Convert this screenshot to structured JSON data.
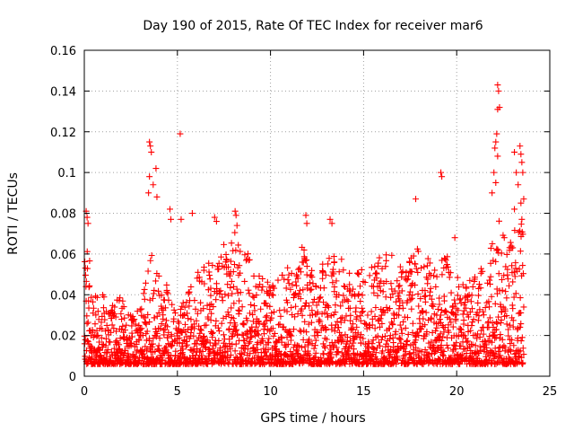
{
  "chart_data": {
    "type": "scatter",
    "title": "Day 190 of 2015, Rate Of TEC Index for receiver mar6",
    "xlabel": "GPS time / hours",
    "ylabel": "ROTI / TECUs",
    "xlim": [
      0,
      25
    ],
    "ylim": [
      0,
      0.16
    ],
    "x_ticks": [
      "0",
      "5",
      "10",
      "15",
      "20",
      "25"
    ],
    "y_ticks": [
      "0",
      "0.02",
      "0.04",
      "0.06",
      "0.08",
      "0.1",
      "0.12",
      "0.14",
      "0.16"
    ],
    "grid": true,
    "legend": "none",
    "marker": "plus",
    "color": "#ff0000",
    "envelope": {
      "x": [
        0,
        0.1,
        0.2,
        0.3,
        0.5,
        1,
        1.5,
        2,
        2.5,
        3,
        3.5,
        3.6,
        4,
        4.5,
        5,
        5.5,
        6,
        6.5,
        7,
        7.5,
        8,
        8.2,
        9,
        9.5,
        10,
        10.5,
        11,
        11.5,
        11.8,
        12,
        12.5,
        13,
        13.3,
        14,
        14.5,
        15,
        15.5,
        16,
        16.5,
        17,
        17.5,
        18,
        18.5,
        19,
        19.5,
        20,
        20.5,
        21,
        21.5,
        22,
        22.3,
        22.5,
        23,
        23.3,
        23.6
      ],
      "y": [
        0.05,
        0.08,
        0.07,
        0.055,
        0.045,
        0.04,
        0.035,
        0.04,
        0.03,
        0.035,
        0.055,
        0.06,
        0.05,
        0.045,
        0.03,
        0.04,
        0.05,
        0.055,
        0.06,
        0.065,
        0.07,
        0.075,
        0.055,
        0.05,
        0.045,
        0.05,
        0.055,
        0.06,
        0.07,
        0.055,
        0.05,
        0.06,
        0.07,
        0.055,
        0.05,
        0.055,
        0.06,
        0.065,
        0.06,
        0.055,
        0.06,
        0.065,
        0.06,
        0.055,
        0.06,
        0.05,
        0.045,
        0.05,
        0.055,
        0.07,
        0.08,
        0.07,
        0.065,
        0.09,
        0.07
      ]
    },
    "outliers": [
      {
        "x": 0.1,
        "y": 0.081
      },
      {
        "x": 0.15,
        "y": 0.078
      },
      {
        "x": 0.2,
        "y": 0.075
      },
      {
        "x": 3.5,
        "y": 0.115
      },
      {
        "x": 3.55,
        "y": 0.113
      },
      {
        "x": 3.6,
        "y": 0.11
      },
      {
        "x": 3.5,
        "y": 0.098
      },
      {
        "x": 3.45,
        "y": 0.09
      },
      {
        "x": 3.85,
        "y": 0.102
      },
      {
        "x": 3.7,
        "y": 0.094
      },
      {
        "x": 3.9,
        "y": 0.088
      },
      {
        "x": 4.6,
        "y": 0.082
      },
      {
        "x": 4.65,
        "y": 0.077
      },
      {
        "x": 5.15,
        "y": 0.119
      },
      {
        "x": 5.2,
        "y": 0.077
      },
      {
        "x": 5.8,
        "y": 0.08
      },
      {
        "x": 7.0,
        "y": 0.078
      },
      {
        "x": 7.1,
        "y": 0.076
      },
      {
        "x": 8.1,
        "y": 0.081
      },
      {
        "x": 8.15,
        "y": 0.079
      },
      {
        "x": 8.2,
        "y": 0.074
      },
      {
        "x": 11.9,
        "y": 0.079
      },
      {
        "x": 11.95,
        "y": 0.075
      },
      {
        "x": 13.2,
        "y": 0.077
      },
      {
        "x": 13.3,
        "y": 0.075
      },
      {
        "x": 17.8,
        "y": 0.087
      },
      {
        "x": 19.15,
        "y": 0.1
      },
      {
        "x": 19.2,
        "y": 0.098
      },
      {
        "x": 19.9,
        "y": 0.068
      },
      {
        "x": 22.2,
        "y": 0.143
      },
      {
        "x": 22.25,
        "y": 0.14
      },
      {
        "x": 22.3,
        "y": 0.132
      },
      {
        "x": 22.2,
        "y": 0.131
      },
      {
        "x": 22.15,
        "y": 0.119
      },
      {
        "x": 22.1,
        "y": 0.115
      },
      {
        "x": 22.05,
        "y": 0.112
      },
      {
        "x": 22.2,
        "y": 0.108
      },
      {
        "x": 22.0,
        "y": 0.1
      },
      {
        "x": 22.1,
        "y": 0.095
      },
      {
        "x": 21.9,
        "y": 0.09
      },
      {
        "x": 23.4,
        "y": 0.113
      },
      {
        "x": 23.45,
        "y": 0.109
      },
      {
        "x": 23.5,
        "y": 0.105
      },
      {
        "x": 23.55,
        "y": 0.1
      },
      {
        "x": 23.1,
        "y": 0.11
      },
      {
        "x": 23.2,
        "y": 0.1
      },
      {
        "x": 23.3,
        "y": 0.094
      },
      {
        "x": 23.6,
        "y": 0.087
      },
      {
        "x": 23.45,
        "y": 0.085
      },
      {
        "x": 23.5,
        "y": 0.077
      },
      {
        "x": 23.1,
        "y": 0.082
      }
    ]
  }
}
